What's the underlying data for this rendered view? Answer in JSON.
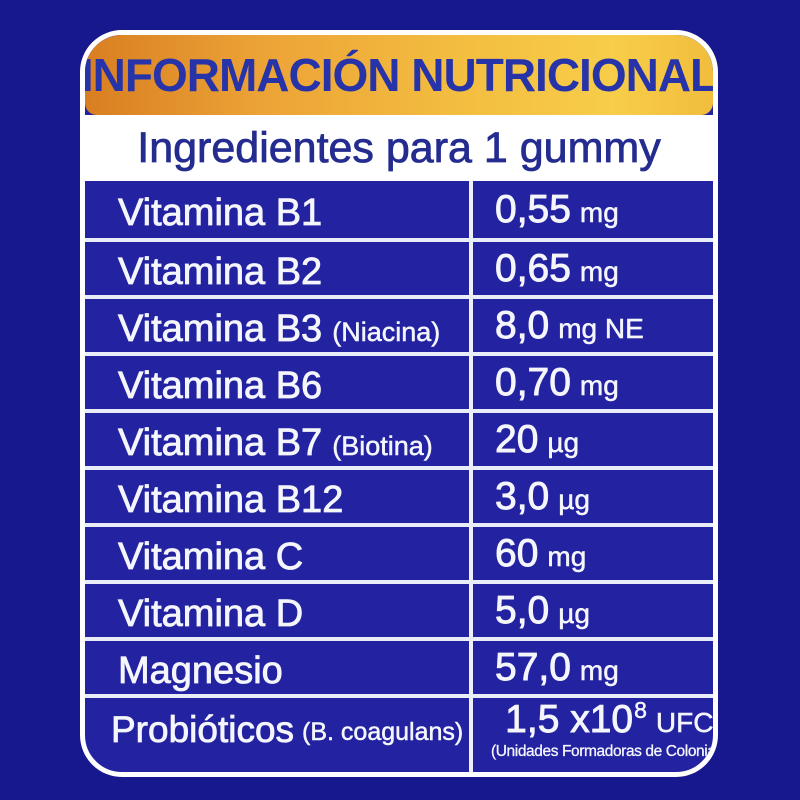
{
  "colors": {
    "outer_background": "#18188e",
    "card_background": "#2323a2",
    "card_border": "#ffffff",
    "header_gradient_start": "#d87e22",
    "header_gradient_end": "#f7cd49",
    "title_text": "#2733a8",
    "subtitle_text": "#242c90",
    "table_text": "#f5f6fc",
    "grid_lines": "#e9edf8"
  },
  "header": {
    "title": "INFORMACIÓN NUTRICIONAL",
    "subtitle": "Ingredientes para 1 gummy"
  },
  "table": {
    "columns": [
      "ingredient",
      "amount"
    ],
    "rows": [
      {
        "label": "Vitamina B1",
        "label_note": "",
        "value": "0,55",
        "sup": "",
        "unit": "mg",
        "footnote": ""
      },
      {
        "label": "Vitamina B2",
        "label_note": "",
        "value": "0,65",
        "sup": "",
        "unit": "mg",
        "footnote": ""
      },
      {
        "label": "Vitamina B3",
        "label_note": "(Niacina)",
        "value": "8,0",
        "sup": "",
        "unit": "mg NE",
        "footnote": ""
      },
      {
        "label": "Vitamina B6",
        "label_note": "",
        "value": "0,70",
        "sup": "",
        "unit": "mg",
        "footnote": ""
      },
      {
        "label": "Vitamina B7",
        "label_note": "(Biotina)",
        "value": "20",
        "sup": "",
        "unit": "µg",
        "footnote": ""
      },
      {
        "label": "Vitamina B12",
        "label_note": "",
        "value": "3,0",
        "sup": "",
        "unit": "µg",
        "footnote": ""
      },
      {
        "label": "Vitamina C",
        "label_note": "",
        "value": "60",
        "sup": "",
        "unit": "mg",
        "footnote": ""
      },
      {
        "label": "Vitamina D",
        "label_note": "",
        "value": "5,0",
        "sup": "",
        "unit": "µg",
        "footnote": ""
      },
      {
        "label": "Magnesio",
        "label_note": "",
        "value": "57,0",
        "sup": "",
        "unit": "mg",
        "footnote": ""
      },
      {
        "label": "Probióticos",
        "label_note": "(B. coagulans)",
        "value": "1,5 x10",
        "sup": "8",
        "unit": "UFC",
        "footnote": "(Unidades Formadoras de Colonias)"
      }
    ]
  }
}
